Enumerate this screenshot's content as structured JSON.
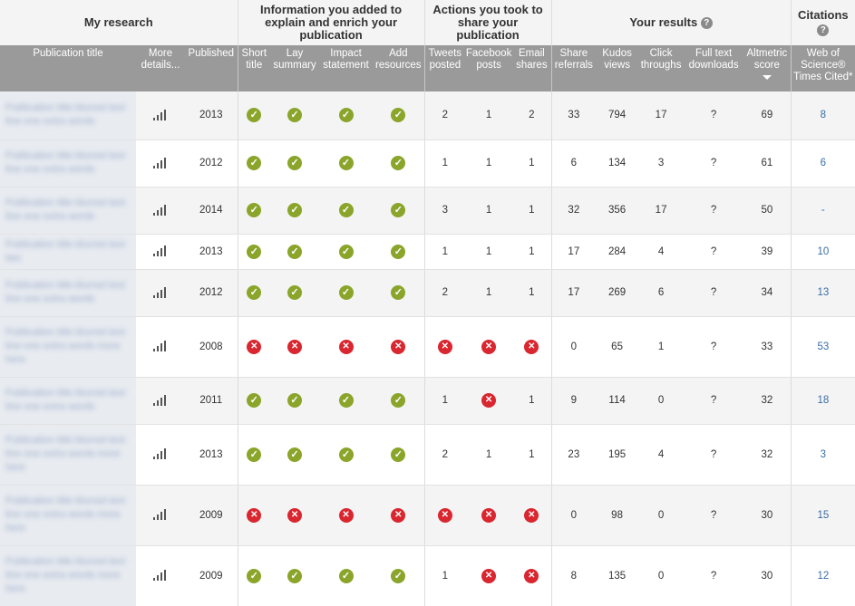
{
  "groups": {
    "my_research": "My research",
    "info_added": "Information you added to explain and enrich your publication",
    "actions": "Actions you took to share your publication",
    "results": "Your results",
    "citations": "Citations"
  },
  "columns": {
    "title": "Publication title",
    "more": "More details...",
    "published": "Published",
    "short_title": "Short title",
    "lay_summary": "Lay summary",
    "impact": "Impact statement",
    "add_resources": "Add resources",
    "tweets": "Tweets posted",
    "facebook": "Facebook posts",
    "email": "Email shares",
    "share_ref": "Share referrals",
    "kudos_views": "Kudos views",
    "click": "Click throughs",
    "fulltext": "Full text downloads",
    "altmetric": "Altmetric score",
    "wos": "Web of Science® Times Cited*"
  },
  "help_icon": "?",
  "colors": {
    "check": "#8aa52a",
    "cross": "#d9262f",
    "header": "#9a9a9a",
    "link": "#3a6ea5"
  },
  "rows": [
    {
      "title": "Publication title blurred text line one extra words",
      "year": "2013",
      "info": [
        1,
        1,
        1,
        1
      ],
      "tweets": "2",
      "fb": "1",
      "email": "2",
      "share": "33",
      "views": "794",
      "clicks": "17",
      "ft": "?",
      "alt": "69",
      "cite": "8"
    },
    {
      "title": "Publication title blurred text line one extra words",
      "year": "2012",
      "info": [
        1,
        1,
        1,
        1
      ],
      "tweets": "1",
      "fb": "1",
      "email": "1",
      "share": "6",
      "views": "134",
      "clicks": "3",
      "ft": "?",
      "alt": "61",
      "cite": "6"
    },
    {
      "title": "Publication title blurred text line one extra words",
      "year": "2014",
      "info": [
        1,
        1,
        1,
        1
      ],
      "tweets": "3",
      "fb": "1",
      "email": "1",
      "share": "32",
      "views": "356",
      "clicks": "17",
      "ft": "?",
      "alt": "50",
      "cite": "-"
    },
    {
      "title": "Publication title blurred text two",
      "year": "2013",
      "info": [
        1,
        1,
        1,
        1
      ],
      "tweets": "1",
      "fb": "1",
      "email": "1",
      "share": "17",
      "views": "284",
      "clicks": "4",
      "ft": "?",
      "alt": "39",
      "cite": "10"
    },
    {
      "title": "Publication title blurred text line one extra words",
      "year": "2012",
      "info": [
        1,
        1,
        1,
        1
      ],
      "tweets": "2",
      "fb": "1",
      "email": "1",
      "share": "17",
      "views": "269",
      "clicks": "6",
      "ft": "?",
      "alt": "34",
      "cite": "13"
    },
    {
      "title": "Publication title blurred text line one extra words more here",
      "year": "2008",
      "info": [
        0,
        0,
        0,
        0
      ],
      "tweets": "x",
      "fb": "x",
      "email": "x",
      "share": "0",
      "views": "65",
      "clicks": "1",
      "ft": "?",
      "alt": "33",
      "cite": "53"
    },
    {
      "title": "Publication title blurred text line one extra words",
      "year": "2011",
      "info": [
        1,
        1,
        1,
        1
      ],
      "tweets": "1",
      "fb": "x",
      "email": "1",
      "share": "9",
      "views": "114",
      "clicks": "0",
      "ft": "?",
      "alt": "32",
      "cite": "18"
    },
    {
      "title": "Publication title blurred text line one extra words more here",
      "year": "2013",
      "info": [
        1,
        1,
        1,
        1
      ],
      "tweets": "2",
      "fb": "1",
      "email": "1",
      "share": "23",
      "views": "195",
      "clicks": "4",
      "ft": "?",
      "alt": "32",
      "cite": "3"
    },
    {
      "title": "Publication title blurred text line one extra words more here",
      "year": "2009",
      "info": [
        0,
        0,
        0,
        0
      ],
      "tweets": "x",
      "fb": "x",
      "email": "x",
      "share": "0",
      "views": "98",
      "clicks": "0",
      "ft": "?",
      "alt": "30",
      "cite": "15"
    },
    {
      "title": "Publication title blurred text line one extra words more here",
      "year": "2009",
      "info": [
        1,
        1,
        1,
        1
      ],
      "tweets": "1",
      "fb": "x",
      "email": "x",
      "share": "8",
      "views": "135",
      "clicks": "0",
      "ft": "?",
      "alt": "30",
      "cite": "12"
    }
  ]
}
